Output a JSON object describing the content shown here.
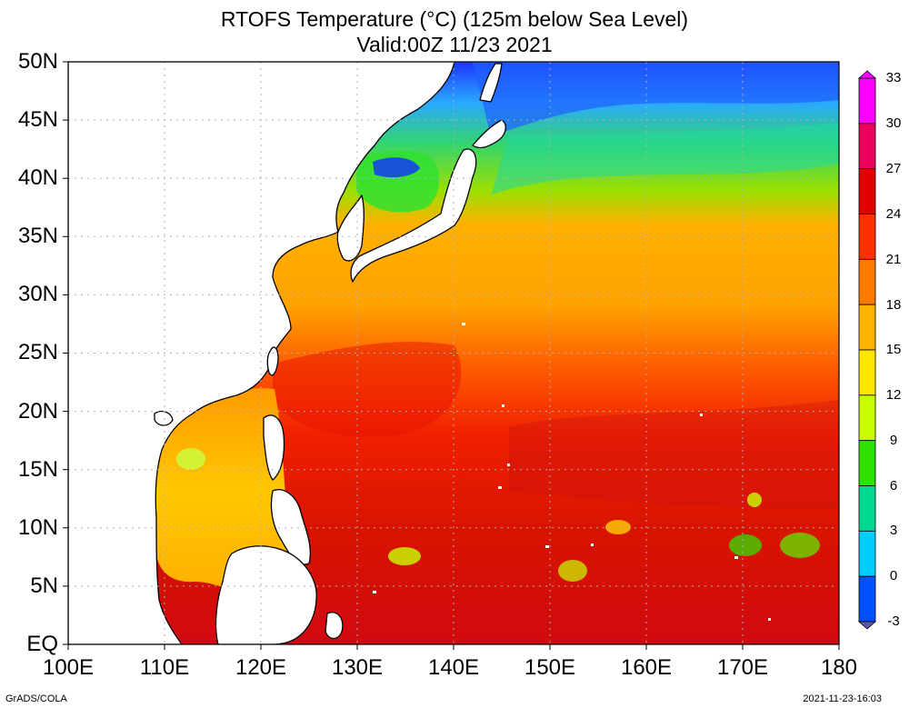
{
  "title_line1": "RTOFS Temperature (°C) (125m below Sea Level)",
  "title_line2": "Valid:00Z 11/23 2021",
  "lat_labels": [
    "50N",
    "45N",
    "40N",
    "35N",
    "30N",
    "25N",
    "20N",
    "15N",
    "10N",
    "5N",
    "EQ"
  ],
  "lon_labels": [
    "100E",
    "110E",
    "120E",
    "130E",
    "140E",
    "150E",
    "160E",
    "170E",
    "180"
  ],
  "colorbar": {
    "labels": [
      "33",
      "30",
      "27",
      "24",
      "21",
      "18",
      "15",
      "12",
      "9",
      "6",
      "3",
      "0",
      "-3"
    ],
    "colors": [
      "#ff00ff",
      "#e8005a",
      "#e00000",
      "#ff3000",
      "#ff7a00",
      "#ffb300",
      "#ffe600",
      "#c8ff00",
      "#30e000",
      "#00d890",
      "#00ccff",
      "#0050ff",
      "#5a5aa0"
    ]
  },
  "footer_left": "GrADS/COLA",
  "footer_right": "2021-11-23-16:03"
}
